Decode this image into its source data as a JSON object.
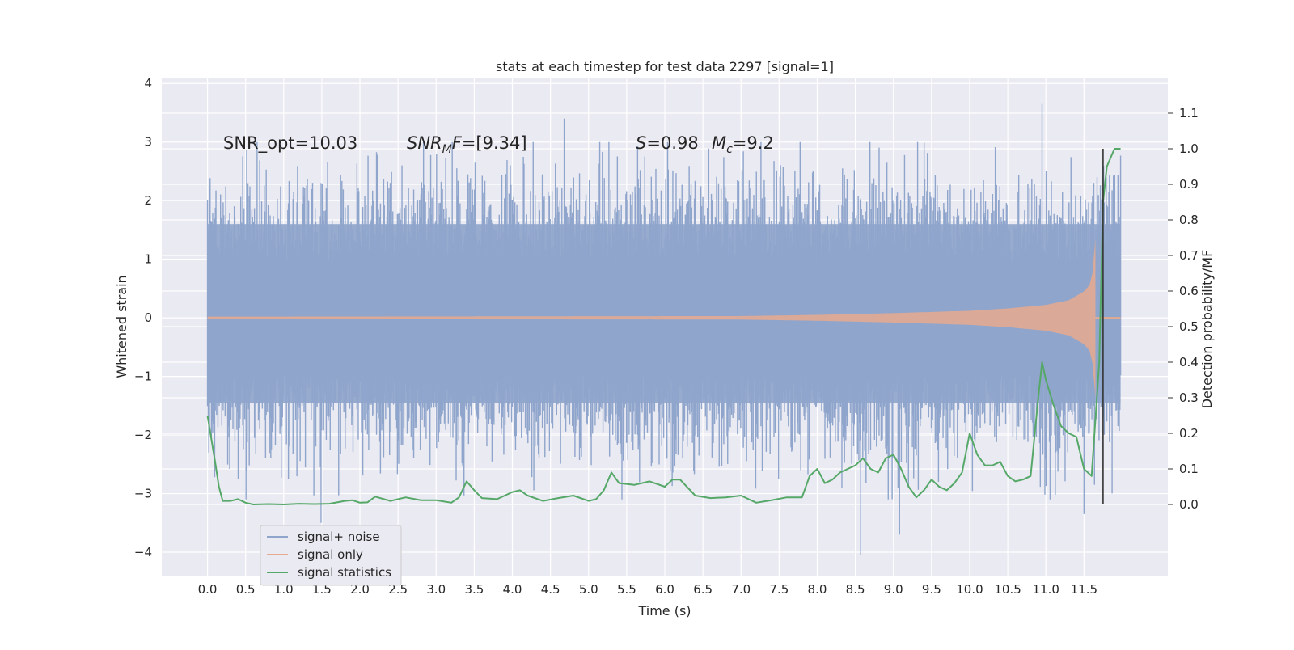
{
  "chart_data": {
    "type": "line",
    "title": "stats at each timestep for test data 2297 [signal=1]",
    "xlabel": "Time (s)",
    "ylabel_left": "Whitened strain",
    "ylabel_right": "Detection probability/MF",
    "xlim": [
      -0.6,
      12.6
    ],
    "ylim_left": [
      -4.4,
      4.1
    ],
    "ylim_right": [
      -0.2,
      1.2
    ],
    "x_ticks": [
      0.0,
      0.5,
      1.0,
      1.5,
      2.0,
      2.5,
      3.0,
      3.5,
      4.0,
      4.5,
      5.0,
      5.5,
      6.0,
      6.5,
      7.0,
      7.5,
      8.0,
      8.5,
      9.0,
      9.5,
      10.0,
      10.5,
      11.0,
      11.5
    ],
    "x_tick_labels": [
      "0.0",
      "0.5",
      "1.0",
      "1.5",
      "2.0",
      "2.5",
      "3.0",
      "3.5",
      "4.0",
      "4.5",
      "5.0",
      "5.5",
      "6.0",
      "6.5",
      "7.0",
      "7.5",
      "8.0",
      "8.5",
      "9.0",
      "9.5",
      "10.0",
      "10.5",
      "11.0",
      "11.5"
    ],
    "y_left_ticks": [
      4,
      3,
      2,
      1,
      0,
      -1,
      -2,
      -3,
      -4
    ],
    "y_left_tick_labels": [
      "4",
      "3",
      "2",
      "1",
      "0",
      "−1",
      "−2",
      "−3",
      "−4"
    ],
    "y_right_ticks": [
      1.1,
      1.0,
      0.9,
      0.8,
      0.7,
      0.6,
      0.5,
      0.4,
      0.3,
      0.2,
      0.1,
      0.0
    ],
    "y_right_tick_labels": [
      "1.1",
      "1.0",
      "0.9",
      "0.8",
      "0.7",
      "0.6",
      "0.5",
      "0.4",
      "0.3",
      "0.2",
      "0.1",
      "0.0"
    ],
    "grid": true,
    "legend_position": "lower-left",
    "annotations": {
      "snr_opt": "SNR_opt=10.03",
      "snr_mf_label": "SNR",
      "snr_mf_sub": "M",
      "snr_mf_rest": "F=[9.34]",
      "s_label": "S",
      "s_value": "=0.98",
      "mc_label": "M",
      "mc_sub": "c",
      "mc_value": "=9.2"
    },
    "series": [
      {
        "name": "signal+ noise",
        "color": "#8fa5cc",
        "kind": "noise-band",
        "x_range": [
          0.0,
          11.98
        ],
        "typical_range": [
          -1.45,
          1.6
        ],
        "notable_peaks": [
          {
            "x": 4.68,
            "y": 3.4
          },
          {
            "x": 10.95,
            "y": 3.65
          },
          {
            "x": 1.49,
            "y": -3.5
          },
          {
            "x": 8.57,
            "y": -4.05
          },
          {
            "x": 9.08,
            "y": -3.7
          },
          {
            "x": 11.5,
            "y": -3.35
          }
        ]
      },
      {
        "name": "signal only",
        "color": "#e5aa8f",
        "kind": "chirp",
        "x_range": [
          0.0,
          11.65
        ],
        "envelope_x": [
          0.0,
          7.0,
          8.0,
          9.0,
          10.0,
          10.5,
          11.0,
          11.3,
          11.5,
          11.6,
          11.65
        ],
        "envelope_amp": [
          0.02,
          0.03,
          0.05,
          0.08,
          0.12,
          0.16,
          0.22,
          0.3,
          0.45,
          0.6,
          1.35
        ]
      },
      {
        "name": "signal statistics",
        "color": "#55a868",
        "kind": "line",
        "x": [
          0.0,
          0.1,
          0.15,
          0.2,
          0.3,
          0.4,
          0.5,
          0.6,
          0.8,
          1.0,
          1.2,
          1.4,
          1.6,
          1.8,
          1.9,
          2.0,
          2.1,
          2.2,
          2.4,
          2.6,
          2.8,
          3.0,
          3.2,
          3.3,
          3.4,
          3.5,
          3.6,
          3.8,
          4.0,
          4.1,
          4.2,
          4.4,
          4.6,
          4.8,
          5.0,
          5.1,
          5.2,
          5.3,
          5.4,
          5.6,
          5.8,
          6.0,
          6.1,
          6.2,
          6.4,
          6.6,
          6.8,
          7.0,
          7.2,
          7.4,
          7.6,
          7.8,
          7.9,
          8.0,
          8.1,
          8.2,
          8.3,
          8.4,
          8.5,
          8.6,
          8.7,
          8.8,
          8.9,
          9.0,
          9.1,
          9.2,
          9.3,
          9.4,
          9.5,
          9.6,
          9.7,
          9.8,
          9.9,
          10.0,
          10.1,
          10.2,
          10.3,
          10.4,
          10.5,
          10.6,
          10.7,
          10.8,
          10.9,
          10.95,
          11.0,
          11.1,
          11.2,
          11.3,
          11.4,
          11.5,
          11.6,
          11.7,
          11.75,
          11.8,
          11.9,
          11.98
        ],
        "y": [
          0.25,
          0.12,
          0.05,
          0.01,
          0.01,
          0.015,
          0.005,
          0.0,
          0.001,
          0.0,
          0.002,
          0.001,
          0.002,
          0.01,
          0.012,
          0.005,
          0.006,
          0.022,
          0.01,
          0.02,
          0.012,
          0.012,
          0.005,
          0.02,
          0.065,
          0.04,
          0.018,
          0.015,
          0.035,
          0.04,
          0.025,
          0.01,
          0.018,
          0.025,
          0.01,
          0.015,
          0.04,
          0.09,
          0.06,
          0.055,
          0.065,
          0.05,
          0.07,
          0.07,
          0.025,
          0.018,
          0.02,
          0.025,
          0.005,
          0.012,
          0.02,
          0.02,
          0.08,
          0.1,
          0.06,
          0.07,
          0.09,
          0.1,
          0.11,
          0.13,
          0.1,
          0.09,
          0.13,
          0.14,
          0.1,
          0.05,
          0.02,
          0.04,
          0.07,
          0.05,
          0.04,
          0.06,
          0.09,
          0.2,
          0.14,
          0.11,
          0.11,
          0.12,
          0.08,
          0.065,
          0.07,
          0.08,
          0.3,
          0.4,
          0.35,
          0.28,
          0.22,
          0.2,
          0.19,
          0.1,
          0.08,
          0.4,
          0.85,
          0.95,
          1.0,
          1.0
        ]
      }
    ],
    "marker_line": {
      "x": 11.75,
      "y_right_range": [
        0.0,
        1.0
      ],
      "color": "#333333"
    }
  }
}
